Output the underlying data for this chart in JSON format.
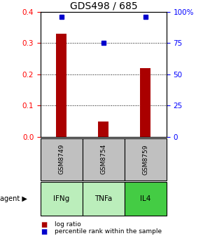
{
  "title": "GDS498 / 685",
  "samples": [
    "GSM8749",
    "GSM8754",
    "GSM8759"
  ],
  "agents": [
    "IFNg",
    "TNFa",
    "IL4"
  ],
  "log_ratios": [
    0.33,
    0.05,
    0.22
  ],
  "percentile_ranks": [
    96,
    75,
    96
  ],
  "ylim_left": [
    0,
    0.4
  ],
  "ylim_right": [
    0,
    100
  ],
  "yticks_left": [
    0,
    0.1,
    0.2,
    0.3,
    0.4
  ],
  "yticks_right": [
    0,
    25,
    50,
    75,
    100
  ],
  "ytick_labels_right": [
    "0",
    "25",
    "50",
    "75",
    "100%"
  ],
  "bar_color": "#AA0000",
  "dot_color": "#0000CC",
  "sample_box_color": "#C0C0C0",
  "agent_colors": [
    "#BBEEBB",
    "#BBEEBB",
    "#44CC44"
  ],
  "bar_width": 0.25,
  "title_fontsize": 10,
  "tick_fontsize": 7.5,
  "label_fontsize": 7,
  "legend_fontsize": 6.5,
  "sample_fontsize": 6.5,
  "agent_fontsize": 7.5
}
